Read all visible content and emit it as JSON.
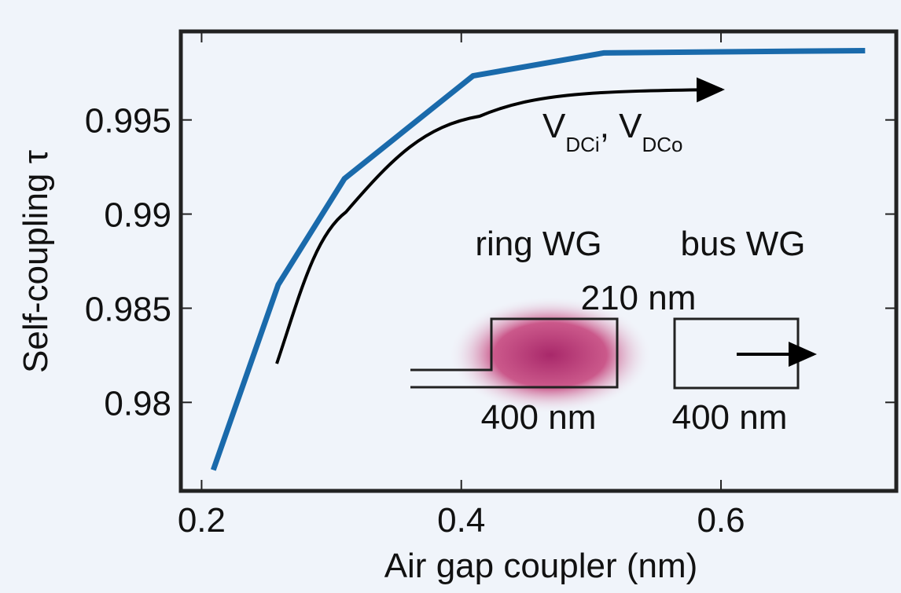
{
  "chart_data": {
    "type": "line",
    "x_label": "Air gap coupler (nm)",
    "y_label": "Self-coupling τ",
    "x": [
      0.209,
      0.259,
      0.31,
      0.409,
      0.51,
      0.711
    ],
    "series": [
      {
        "color": "#1a6aab",
        "values": [
          0.97641,
          0.98625,
          0.99188,
          0.99734,
          0.99856,
          0.99868
        ]
      }
    ],
    "xlim": [
      0.184,
      0.735
    ],
    "ylim": [
      0.9753,
      0.9997
    ],
    "xticks": [
      0.2,
      0.4,
      0.6
    ],
    "yticks": [
      0.995,
      0.99,
      0.985,
      0.98
    ],
    "annotation": {
      "v1": "V",
      "s1": "DCi",
      "v2": ", V",
      "s2": "DCo"
    },
    "inset": {
      "ring": "ring WG",
      "bus": "bus WG",
      "height": "210 nm",
      "ring_width": "400 nm",
      "bus_width": "400 nm"
    }
  }
}
